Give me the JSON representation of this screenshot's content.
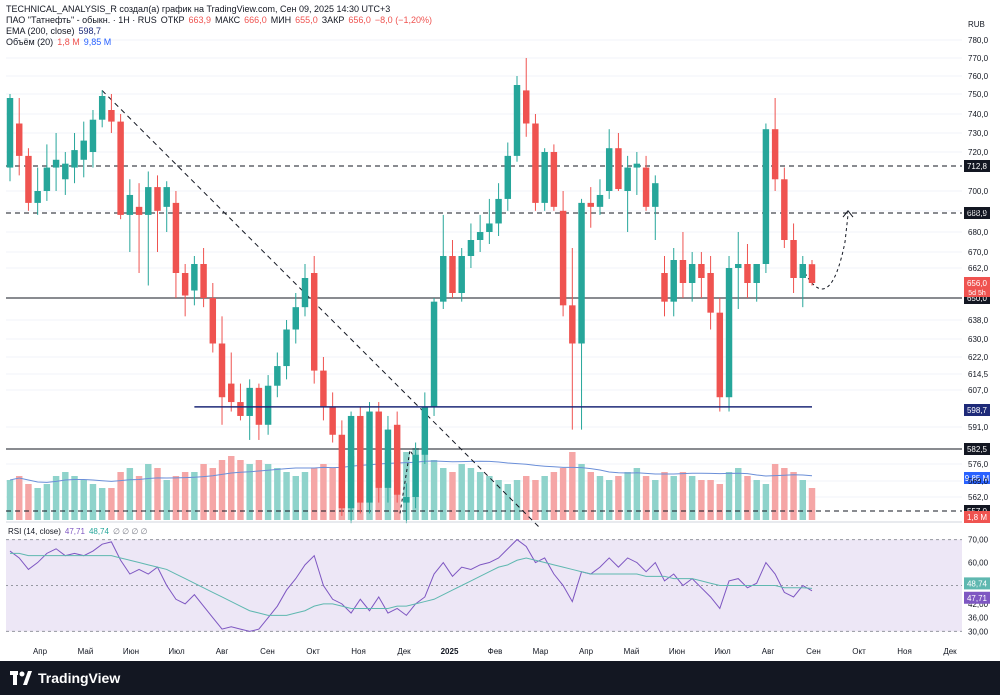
{
  "header": {
    "title": "TECHNICAL_ANALYSIS_R создал(а) график на TradingView.com, Сен 09, 2025 14:30 UTC+3",
    "symbol": "ПАО \"Татнефть\" - обыкн. · 1Н · RUS",
    "ohlc": {
      "open_label": "ОТКР",
      "open": "663,9",
      "high_label": "МАКС",
      "high": "666,0",
      "low_label": "МИН",
      "low": "655,0",
      "close_label": "ЗАКР",
      "close": "656,0",
      "change": "−8,0 (−1,20%)"
    },
    "ema_label": "EMA (200, close)",
    "ema_value": "598,7",
    "volume_label": "Объём (20)",
    "volume_value": "1,8 М",
    "volume_ma": "9,85 М",
    "currency": "RUB"
  },
  "rsi_header": {
    "label": "RSI (14, close)",
    "v1": "47,71",
    "v2": "48,74",
    "icons": "∅ ∅ ∅ ∅"
  },
  "footer": {
    "brand": "TradingView"
  },
  "colors": {
    "up": "#26a69a",
    "down": "#ef5350",
    "up_vol": "#8fd3cb",
    "down_vol": "#f5a6a6",
    "ema": "#1e2a78",
    "vol_ma": "#6b8fd8",
    "rsi": "#7e57c2",
    "rsi_ma": "#5fb8b0",
    "rsi_bg": "#ede7f6"
  },
  "chart_data": [
    {
      "type": "candlestick",
      "title": "",
      "currency": "RUB",
      "y_ticks": [
        780.0,
        770.0,
        760.0,
        750.0,
        740.0,
        730.0,
        720.0,
        700.0,
        690.0,
        680.0,
        670.0,
        662.0,
        638.0,
        630.0,
        622.0,
        614.5,
        607.0,
        591.0,
        576.0,
        569.0,
        562.0
      ],
      "y_tick_labels": [
        "780,0",
        "770,0",
        "760,0",
        "750,0",
        "740,0",
        "730,0",
        "720,0",
        "700,0",
        "690,0",
        "680,0",
        "670,0",
        "662,0",
        "638,0",
        "630,0",
        "622,0",
        "614,5",
        "607,0",
        "591,0",
        "576,0",
        "569,0",
        "562,0"
      ],
      "x_tick_labels": [
        "Апр",
        "Май",
        "Июн",
        "Июл",
        "Авг",
        "Сен",
        "Окт",
        "Ноя",
        "Дек",
        "2025",
        "Фев",
        "Мар",
        "Апр",
        "Май",
        "Июн",
        "Июл",
        "Авг",
        "Сен",
        "Окт",
        "Ноя",
        "Дек"
      ],
      "horizontal_levels": [
        {
          "value": 712.8,
          "label": "712,8",
          "style": "dashed"
        },
        {
          "value": 688.9,
          "label": "688,9",
          "style": "dashed"
        },
        {
          "value": 650.0,
          "label": "650,0",
          "style": "solid"
        },
        {
          "value": 582.5,
          "label": "582,5",
          "style": "solid"
        },
        {
          "value": 557.0,
          "label": "557,0",
          "style": "dashed"
        }
      ],
      "price_tags": [
        {
          "label": "656,0",
          "sub": "5d 5h"
        },
        {
          "label": "598,7",
          "series": "EMA"
        },
        {
          "label": "9,85 М",
          "series": "Volume MA"
        },
        {
          "label": "1,8 М",
          "series": "Volume"
        }
      ],
      "candles": [
        {
          "o": 712,
          "h": 750,
          "l": 705,
          "c": 748
        },
        {
          "o": 735,
          "h": 748,
          "l": 708,
          "c": 718
        },
        {
          "o": 718,
          "h": 722,
          "l": 690,
          "c": 694
        },
        {
          "o": 694,
          "h": 712,
          "l": 688,
          "c": 700
        },
        {
          "o": 700,
          "h": 724,
          "l": 695,
          "c": 712
        },
        {
          "o": 712,
          "h": 730,
          "l": 700,
          "c": 716
        },
        {
          "o": 706,
          "h": 720,
          "l": 698,
          "c": 714
        },
        {
          "o": 712,
          "h": 730,
          "l": 704,
          "c": 721
        },
        {
          "o": 716,
          "h": 736,
          "l": 707,
          "c": 726
        },
        {
          "o": 720,
          "h": 742,
          "l": 712,
          "c": 737
        },
        {
          "o": 737,
          "h": 752,
          "l": 733,
          "c": 749
        },
        {
          "o": 742,
          "h": 750,
          "l": 730,
          "c": 736
        },
        {
          "o": 736,
          "h": 740,
          "l": 686,
          "c": 688
        },
        {
          "o": 688,
          "h": 706,
          "l": 670,
          "c": 698
        },
        {
          "o": 692,
          "h": 704,
          "l": 660,
          "c": 688
        },
        {
          "o": 688,
          "h": 710,
          "l": 655,
          "c": 702
        },
        {
          "o": 702,
          "h": 708,
          "l": 670,
          "c": 690
        },
        {
          "o": 692,
          "h": 705,
          "l": 680,
          "c": 702
        },
        {
          "o": 694,
          "h": 700,
          "l": 650,
          "c": 660
        },
        {
          "o": 660,
          "h": 664,
          "l": 640,
          "c": 651
        },
        {
          "o": 653,
          "h": 668,
          "l": 646,
          "c": 664
        },
        {
          "o": 664,
          "h": 672,
          "l": 645,
          "c": 650
        },
        {
          "o": 650,
          "h": 656,
          "l": 624,
          "c": 628
        },
        {
          "o": 628,
          "h": 640,
          "l": 592,
          "c": 604
        },
        {
          "o": 610,
          "h": 624,
          "l": 598,
          "c": 602
        },
        {
          "o": 602,
          "h": 610,
          "l": 594,
          "c": 596
        },
        {
          "o": 596,
          "h": 612,
          "l": 586,
          "c": 608
        },
        {
          "o": 608,
          "h": 610,
          "l": 586,
          "c": 592
        },
        {
          "o": 592,
          "h": 614,
          "l": 588,
          "c": 609
        },
        {
          "o": 609,
          "h": 624,
          "l": 604,
          "c": 618
        },
        {
          "o": 618,
          "h": 638,
          "l": 612,
          "c": 634
        },
        {
          "o": 634,
          "h": 652,
          "l": 628,
          "c": 645
        },
        {
          "o": 645,
          "h": 664,
          "l": 640,
          "c": 658
        },
        {
          "o": 660,
          "h": 668,
          "l": 610,
          "c": 616
        },
        {
          "o": 616,
          "h": 622,
          "l": 594,
          "c": 600
        },
        {
          "o": 600,
          "h": 606,
          "l": 585,
          "c": 588
        },
        {
          "o": 588,
          "h": 594,
          "l": 555,
          "c": 558
        },
        {
          "o": 558,
          "h": 598,
          "l": 552,
          "c": 596
        },
        {
          "o": 596,
          "h": 600,
          "l": 556,
          "c": 560
        },
        {
          "o": 560,
          "h": 602,
          "l": 556,
          "c": 598
        },
        {
          "o": 598,
          "h": 602,
          "l": 560,
          "c": 566
        },
        {
          "o": 566,
          "h": 596,
          "l": 560,
          "c": 590
        },
        {
          "o": 592,
          "h": 598,
          "l": 560,
          "c": 563
        },
        {
          "o": 560,
          "h": 568,
          "l": 552,
          "c": 562
        },
        {
          "o": 562,
          "h": 585,
          "l": 558,
          "c": 580
        },
        {
          "o": 580,
          "h": 606,
          "l": 576,
          "c": 600
        },
        {
          "o": 600,
          "h": 650,
          "l": 596,
          "c": 648
        },
        {
          "o": 648,
          "h": 688,
          "l": 644,
          "c": 668
        },
        {
          "o": 668,
          "h": 676,
          "l": 650,
          "c": 652
        },
        {
          "o": 652,
          "h": 672,
          "l": 648,
          "c": 668
        },
        {
          "o": 668,
          "h": 684,
          "l": 662,
          "c": 676
        },
        {
          "o": 676,
          "h": 688,
          "l": 670,
          "c": 680
        },
        {
          "o": 680,
          "h": 696,
          "l": 674,
          "c": 684
        },
        {
          "o": 684,
          "h": 704,
          "l": 678,
          "c": 696
        },
        {
          "o": 696,
          "h": 725,
          "l": 690,
          "c": 718
        },
        {
          "o": 718,
          "h": 760,
          "l": 715,
          "c": 755
        },
        {
          "o": 752,
          "h": 770,
          "l": 728,
          "c": 735
        },
        {
          "o": 735,
          "h": 740,
          "l": 690,
          "c": 694
        },
        {
          "o": 694,
          "h": 722,
          "l": 690,
          "c": 720
        },
        {
          "o": 720,
          "h": 724,
          "l": 690,
          "c": 692
        },
        {
          "o": 690,
          "h": 700,
          "l": 640,
          "c": 646
        },
        {
          "o": 646,
          "h": 672,
          "l": 590,
          "c": 628
        },
        {
          "o": 628,
          "h": 696,
          "l": 590,
          "c": 694
        },
        {
          "o": 694,
          "h": 702,
          "l": 682,
          "c": 692
        },
        {
          "o": 692,
          "h": 706,
          "l": 688,
          "c": 698
        },
        {
          "o": 700,
          "h": 732,
          "l": 696,
          "c": 722
        },
        {
          "o": 722,
          "h": 730,
          "l": 700,
          "c": 701
        },
        {
          "o": 700,
          "h": 718,
          "l": 680,
          "c": 712
        },
        {
          "o": 712,
          "h": 720,
          "l": 698,
          "c": 714
        },
        {
          "o": 712,
          "h": 718,
          "l": 690,
          "c": 692
        },
        {
          "o": 692,
          "h": 708,
          "l": 676,
          "c": 704
        },
        {
          "o": 660,
          "h": 668,
          "l": 640,
          "c": 648
        },
        {
          "o": 648,
          "h": 672,
          "l": 640,
          "c": 666
        },
        {
          "o": 666,
          "h": 680,
          "l": 650,
          "c": 656
        },
        {
          "o": 656,
          "h": 670,
          "l": 648,
          "c": 664
        },
        {
          "o": 664,
          "h": 670,
          "l": 650,
          "c": 658
        },
        {
          "o": 660,
          "h": 668,
          "l": 634,
          "c": 642
        },
        {
          "o": 642,
          "h": 650,
          "l": 598,
          "c": 604
        },
        {
          "o": 604,
          "h": 668,
          "l": 598,
          "c": 662
        },
        {
          "o": 662,
          "h": 680,
          "l": 644,
          "c": 664
        },
        {
          "o": 664,
          "h": 674,
          "l": 650,
          "c": 656
        },
        {
          "o": 656,
          "h": 664,
          "l": 648,
          "c": 664
        },
        {
          "o": 664,
          "h": 735,
          "l": 660,
          "c": 732
        },
        {
          "o": 732,
          "h": 748,
          "l": 700,
          "c": 706
        },
        {
          "o": 706,
          "h": 712,
          "l": 672,
          "c": 676
        },
        {
          "o": 676,
          "h": 684,
          "l": 652,
          "c": 658
        },
        {
          "o": 658,
          "h": 668,
          "l": 645,
          "c": 664
        },
        {
          "o": 663.9,
          "h": 666,
          "l": 655,
          "c": 656
        }
      ],
      "ema200": [
        null,
        null,
        null,
        null,
        null,
        null,
        null,
        null,
        null,
        null,
        null,
        null,
        null,
        null,
        null,
        null,
        null,
        null,
        null,
        null,
        null,
        null,
        null,
        null,
        null,
        null,
        null,
        null,
        null,
        null,
        null,
        null,
        null,
        null,
        null,
        null,
        null,
        null,
        null,
        null,
        null,
        null,
        null,
        null,
        null,
        null,
        null,
        null,
        null,
        null,
        null,
        null,
        null,
        null,
        null,
        null,
        null,
        null,
        null,
        null,
        null,
        null,
        null,
        null,
        null,
        null,
        null,
        null,
        null,
        null,
        null,
        null,
        null,
        null,
        null,
        null,
        null,
        null,
        null,
        null,
        null,
        null,
        null,
        null,
        null,
        null,
        null,
        null
      ],
      "ema200_path": [
        [
          36,
          548
        ],
        [
          40,
          551
        ],
        [
          44,
          554
        ],
        [
          48,
          556
        ],
        [
          52,
          560
        ],
        [
          56,
          565
        ],
        [
          60,
          570
        ],
        [
          64,
          574
        ],
        [
          68,
          578
        ],
        [
          72,
          583
        ],
        [
          76,
          586
        ],
        [
          80,
          590
        ],
        [
          84,
          594
        ],
        [
          88,
          597
        ],
        [
          92,
          599
        ],
        [
          96,
          598.7
        ]
      ]
    },
    {
      "type": "line",
      "title": "RSI (14, close)",
      "y_ticks": [
        70,
        60,
        42,
        36,
        30
      ],
      "y_tick_labels": [
        "70,00",
        "60,00",
        "42,00",
        "36,00",
        "30,00"
      ],
      "band": [
        30,
        70
      ],
      "series": [
        {
          "name": "RSI",
          "last": 47.71,
          "values": [
            65,
            62,
            57,
            60,
            64,
            66,
            63,
            64,
            63,
            65,
            68,
            69,
            61,
            55,
            57,
            55,
            58,
            50,
            44,
            42,
            46,
            41,
            36,
            31,
            32,
            31,
            30,
            31,
            36,
            41,
            48,
            53,
            59,
            63,
            50,
            44,
            42,
            38,
            44,
            39,
            45,
            38,
            40,
            37,
            42,
            45,
            55,
            60,
            54,
            58,
            57,
            59,
            60,
            62,
            66,
            70,
            67,
            60,
            62,
            55,
            50,
            43,
            56,
            55,
            58,
            62,
            58,
            62,
            60,
            56,
            60,
            52,
            55,
            50,
            53,
            49,
            45,
            40,
            52,
            53,
            49,
            51,
            60,
            55,
            47,
            45,
            50,
            47.71
          ]
        },
        {
          "name": "RSI MA",
          "last": 48.74,
          "values": [
            64,
            64,
            63,
            63,
            63,
            63,
            63,
            63,
            63,
            63,
            63,
            63,
            62,
            61,
            60,
            59,
            58,
            57,
            55,
            53,
            51,
            49,
            47,
            45,
            43,
            41,
            39,
            38,
            37,
            37,
            37,
            38,
            39,
            41,
            42,
            42,
            41,
            40,
            40,
            40,
            40,
            40,
            41,
            41,
            42,
            43,
            44,
            46,
            48,
            50,
            52,
            54,
            56,
            58,
            59,
            61,
            62,
            61,
            60,
            59,
            58,
            57,
            56,
            55,
            55,
            55,
            55,
            55,
            55,
            54,
            54,
            54,
            53,
            53,
            53,
            52,
            51,
            50,
            50,
            50,
            50,
            50,
            50,
            50,
            49,
            49,
            49,
            48.74
          ]
        }
      ]
    }
  ],
  "volume": {
    "values": [
      10,
      11,
      9,
      8,
      9,
      11,
      12,
      11,
      10,
      9,
      8,
      8,
      12,
      13,
      11,
      14,
      13,
      10,
      11,
      12,
      12,
      14,
      13,
      15,
      16,
      15,
      14,
      15,
      14,
      13,
      12,
      11,
      12,
      13,
      14,
      13,
      14,
      16,
      15,
      15,
      16,
      17,
      15,
      17,
      18,
      20,
      15,
      13,
      12,
      14,
      13,
      12,
      11,
      10,
      9,
      10,
      11,
      10,
      11,
      12,
      13,
      17,
      14,
      12,
      11,
      10,
      11,
      12,
      13,
      11,
      10,
      12,
      11,
      12,
      11,
      10,
      10,
      9,
      12,
      13,
      11,
      10,
      9,
      14,
      13,
      12,
      10,
      8
    ]
  }
}
